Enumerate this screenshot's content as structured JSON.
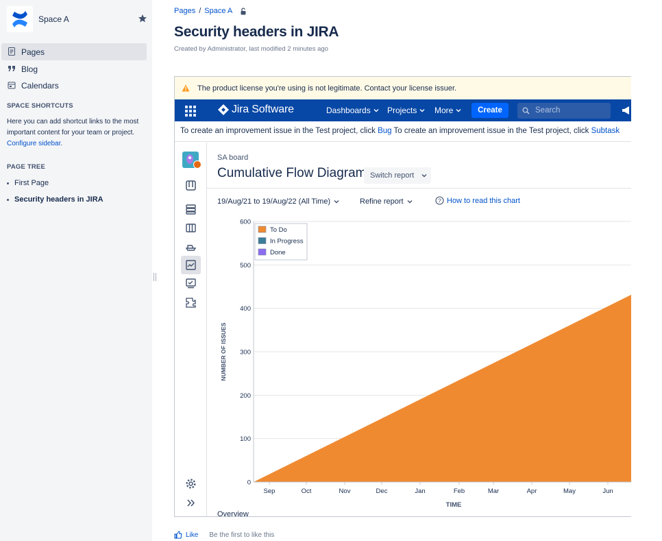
{
  "sidebar": {
    "space_name": "Space A",
    "nav": [
      {
        "label": "Pages",
        "icon": "page-icon"
      },
      {
        "label": "Blog",
        "icon": "quote-icon"
      },
      {
        "label": "Calendars",
        "icon": "calendar-icon"
      }
    ],
    "shortcuts_title": "SPACE SHORTCUTS",
    "shortcuts_text": "Here you can add shortcut links to the most important content for your team or project.",
    "shortcuts_link": "Configure sidebar",
    "shortcuts_end": ".",
    "tree_title": "PAGE TREE",
    "tree": [
      {
        "label": "First Page"
      },
      {
        "label": "Security headers in JIRA"
      }
    ]
  },
  "breadcrumb": {
    "items": [
      "Pages",
      "Space A"
    ],
    "sep": "/"
  },
  "page": {
    "title": "Security headers in JIRA",
    "meta": "Created by Administrator, last modified 2 minutes ago"
  },
  "jira": {
    "license_text": "The product license you're using is not legitimate. Contact your license issuer.",
    "brand": "Jira Software",
    "nav": {
      "dashboards": "Dashboards",
      "projects": "Projects",
      "more": "More",
      "create": "Create",
      "search_placeholder": "Search"
    },
    "announcement": {
      "part1": "To create an improvement issue in the Test project, click ",
      "link1": "Bug",
      "part2": " To create an improvement issue in the Test project, click ",
      "link2": "Subtask"
    },
    "board_name": "SA board",
    "report_title": "Cumulative Flow Diagram",
    "switch_report": "Switch report",
    "date_range": "19/Aug/21 to 19/Aug/22 (All Time)",
    "refine": "Refine report",
    "help": "How to read this chart",
    "overview": "Overview"
  },
  "chart_data": {
    "type": "area",
    "xlabel": "TIME",
    "ylabel": "NUMBER OF ISSUES",
    "ylim": [
      0,
      600
    ],
    "yticks": [
      0,
      100,
      200,
      300,
      400,
      500,
      600
    ],
    "xticks": [
      "Sep",
      "Oct",
      "Nov",
      "Dec",
      "Jan",
      "Feb",
      "Mar",
      "Apr",
      "May",
      "Jun"
    ],
    "legend": [
      {
        "name": "To Do",
        "color": "#f08a31"
      },
      {
        "name": "In Progress",
        "color": "#3c7d99"
      },
      {
        "name": "Done",
        "color": "#8c6df0"
      }
    ],
    "legend_position": "top-left",
    "grid": true,
    "series": [
      {
        "name": "To Do",
        "x": [
          "19/Aug/21",
          "Jun"
        ],
        "values": [
          0,
          432
        ]
      }
    ]
  },
  "footer": {
    "like": "Like",
    "first_like": "Be the first to like this"
  }
}
